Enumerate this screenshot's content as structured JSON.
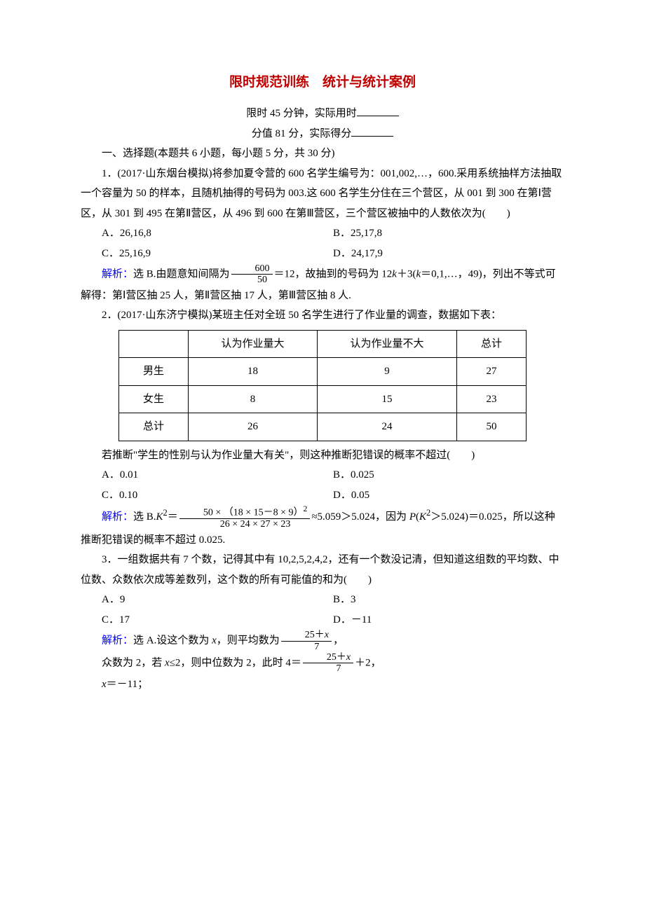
{
  "title": "限时规范训练　统计与统计案例",
  "time_limit": "限时 45 分钟，实际用时",
  "score_line": "分值 81 分，实际得分",
  "section1_heading": "一、选择题(本题共 6 小题，每小题 5 分，共 30 分)",
  "q1": {
    "stem": "1．(2017·山东烟台模拟)将参加夏令营的 600 名学生编号为：001,002,…，600.采用系统抽样方法抽取一个容量为 50 的样本，且随机抽得的号码为 003.这 600 名学生分住在三个营区，从 001 到 300 在第Ⅰ营区，从 301 到 495 在第Ⅱ营区，从 496 到 600 在第Ⅲ营区，三个营区被抽中的人数依次为(　　)",
    "A": "A．26,16,8",
    "B": "B．25,17,8",
    "C": "C．25,16,9",
    "D": "D．24,17,9",
    "ans_label": "解析：",
    "ans_prefix": "选 B.由题意知间隔为",
    "frac_num": "600",
    "frac_den": "50",
    "ans_mid": "＝12，故抽到的号码为 12",
    "ans_k": "k",
    "ans_mid2": "＋3(",
    "ans_k2": "k",
    "ans_suffix": "＝0,1,…，49)，列出不等式可解得：第Ⅰ营区抽 25 人，第Ⅱ营区抽 17 人，第Ⅲ营区抽 8 人."
  },
  "q2": {
    "stem": "2．(2017·山东济宁模拟)某班主任对全班 50 名学生进行了作业量的调查，数据如下表：",
    "table": {
      "headers": [
        "",
        "认为作业量大",
        "认为作业量不大",
        "总计"
      ],
      "rows": [
        [
          "男生",
          "18",
          "9",
          "27"
        ],
        [
          "女生",
          "8",
          "15",
          "23"
        ],
        [
          "总计",
          "26",
          "24",
          "50"
        ]
      ]
    },
    "after_table": "若推断\"学生的性别与认为作业量大有关\"，则这种推断犯错误的概率不超过(　　)",
    "A": "A．0.01",
    "B": "B．0.025",
    "C": "C．0.10",
    "D": "D．0.05",
    "ans_label": "解析：",
    "ans_prefix": "选 B.",
    "K": "K",
    "sq": "2",
    "eq": "＝",
    "frac_num": "50 × （18 × 15－8 × 9）",
    "frac_num_sup": "2",
    "frac_den": "26 × 24 × 27 × 23",
    "ans_mid": "≈5.059＞5.024，因为 ",
    "P": "P",
    "paren_open": "(",
    "K2": "K",
    "sq2": "2",
    "gt": "＞5.024)＝0.025，所以这种推断犯错误的概率不超过 0.025."
  },
  "q3": {
    "stem": "3．一组数据共有 7 个数，记得其中有 10,2,5,2,4,2，还有一个数没记清，但知道这组数的平均数、中位数、众数依次成等差数列，这个数的所有可能值的和为(　　)",
    "A": "A．9",
    "B": "B．3",
    "C": "C．17",
    "D": "D．－11",
    "ans_label": "解析：",
    "ans_prefix": "选 A.设这个数为 ",
    "x": "x",
    "ans_mid1": "，则平均数为",
    "frac1_num_prefix": "25＋",
    "frac1_num_x": "x",
    "frac1_den": "7",
    "ans_mid2": "，",
    "line2_prefix": "众数为 2，若 ",
    "x2": "x",
    "line2_mid": "≤2，则中位数为 2，此时 4＝",
    "frac2_num_prefix": "25＋",
    "frac2_num_x": "x",
    "frac2_den": "7",
    "line2_suffix": "＋2，",
    "line3_x": "x",
    "line3": "＝－11；"
  },
  "colors": {
    "title": "#c00000",
    "analysis_label": "#0000ff",
    "text": "#000000",
    "background": "#ffffff"
  }
}
